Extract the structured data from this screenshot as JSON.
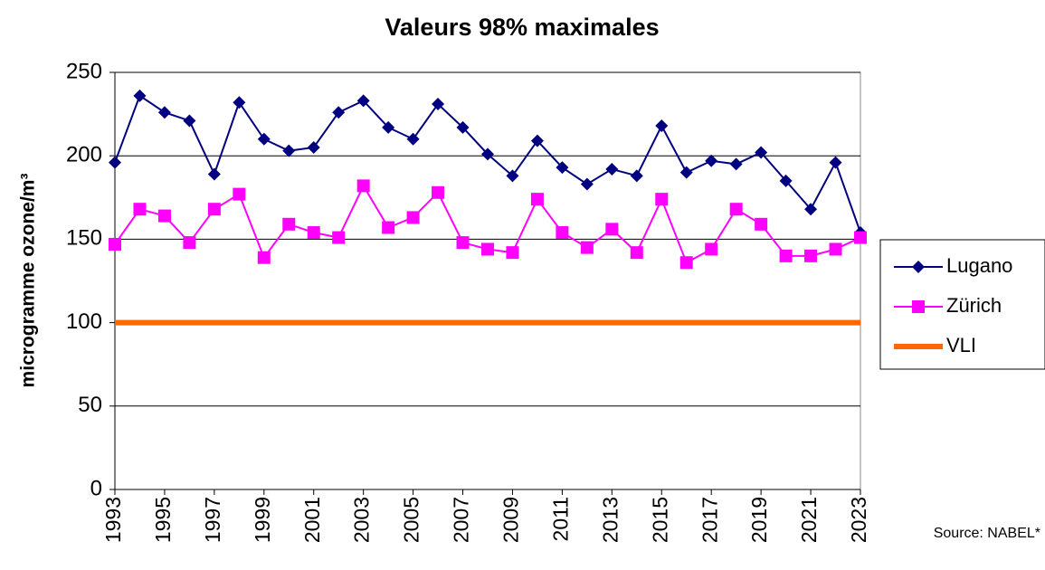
{
  "chart_data": {
    "type": "line",
    "title": "Valeurs 98% maximales",
    "y_label": "microgramme ozone/m³",
    "source": "Source: NABEL*",
    "x": [
      1993,
      1994,
      1995,
      1996,
      1997,
      1998,
      1999,
      2000,
      2001,
      2002,
      2003,
      2004,
      2005,
      2006,
      2007,
      2008,
      2009,
      2010,
      2011,
      2012,
      2013,
      2014,
      2015,
      2016,
      2017,
      2018,
      2019,
      2020,
      2021,
      2022,
      2023
    ],
    "series": [
      {
        "name": "Lugano",
        "color": "#000080",
        "marker": "diamond",
        "values": [
          196,
          236,
          226,
          221,
          189,
          232,
          210,
          203,
          205,
          226,
          233,
          217,
          210,
          231,
          217,
          201,
          188,
          209,
          193,
          183,
          192,
          188,
          218,
          190,
          197,
          195,
          202,
          185,
          168,
          196,
          154
        ]
      },
      {
        "name": "Zürich",
        "color": "#ff00ff",
        "marker": "square",
        "values": [
          147,
          168,
          164,
          148,
          168,
          177,
          139,
          159,
          154,
          151,
          182,
          157,
          163,
          178,
          148,
          144,
          142,
          174,
          154,
          145,
          156,
          142,
          174,
          136,
          144,
          168,
          159,
          140,
          140,
          144,
          151
        ]
      },
      {
        "name": "VLI",
        "color": "#ff6600",
        "marker": "none",
        "values": [
          100,
          100,
          100,
          100,
          100,
          100,
          100,
          100,
          100,
          100,
          100,
          100,
          100,
          100,
          100,
          100,
          100,
          100,
          100,
          100,
          100,
          100,
          100,
          100,
          100,
          100,
          100,
          100,
          100,
          100,
          100
        ]
      }
    ],
    "xlim": [
      1993,
      2023
    ],
    "xticks": [
      1993,
      1995,
      1997,
      1999,
      2001,
      2003,
      2005,
      2007,
      2009,
      2011,
      2013,
      2015,
      2017,
      2019,
      2021,
      2023
    ],
    "ylim": [
      0,
      250
    ],
    "yticks": [
      0,
      50,
      100,
      150,
      200,
      250
    ],
    "grid": true,
    "legend": "right"
  }
}
